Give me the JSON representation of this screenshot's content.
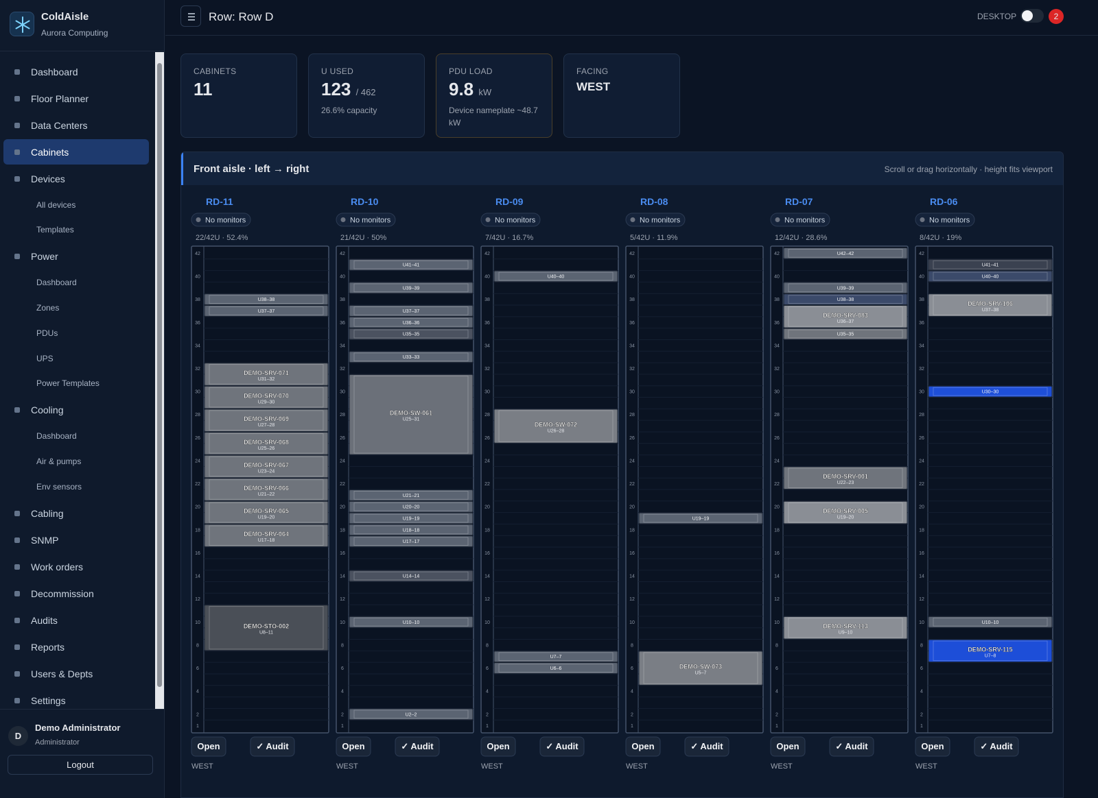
{
  "sidebar": {
    "brand": "ColdAisle",
    "org": "Aurora Computing",
    "nav": [
      {
        "label": "Dashboard"
      },
      {
        "label": "Floor Planner"
      },
      {
        "label": "Data Centers"
      },
      {
        "label": "Cabinets",
        "active": true
      },
      {
        "label": "Devices",
        "children": [
          "All devices",
          "Templates"
        ]
      },
      {
        "label": "Power",
        "children": [
          "Dashboard",
          "Zones",
          "PDUs",
          "UPS",
          "Power Templates"
        ]
      },
      {
        "label": "Cooling",
        "children": [
          "Dashboard",
          "Air & pumps",
          "Env sensors"
        ]
      },
      {
        "label": "Cabling"
      },
      {
        "label": "SNMP"
      },
      {
        "label": "Work orders"
      },
      {
        "label": "Decommission"
      },
      {
        "label": "Audits"
      },
      {
        "label": "Reports"
      },
      {
        "label": "Users & Depts"
      },
      {
        "label": "Settings"
      }
    ],
    "user": {
      "initial": "D",
      "name": "Demo Administrator",
      "role": "Administrator"
    },
    "logout": "Logout"
  },
  "header": {
    "title": "Row: Row D",
    "mode": "DESKTOP",
    "notifications": 2
  },
  "stats": [
    {
      "label": "CABINETS",
      "value": 11
    },
    {
      "label": "U USED",
      "value": 123,
      "total": "/ 462",
      "note": "26.6% capacity"
    },
    {
      "label": "PDU LOAD",
      "value": 9.8,
      "unit": "kW",
      "note": "Device nameplate ~48.7 kW"
    },
    {
      "label": "FACING",
      "value": "WEST"
    }
  ],
  "panel": {
    "title": "Front aisle · left → right",
    "hint": "Scroll or drag horizontally · height fits viewport"
  },
  "rack_units": [
    42,
    40,
    38,
    36,
    34,
    32,
    30,
    28,
    26,
    24,
    22,
    20,
    18,
    16,
    14,
    12,
    10,
    8,
    6,
    4,
    2,
    1
  ],
  "cabinets": [
    {
      "name": "RD-11",
      "monitors": "No monitors",
      "usage": "22/42U · 52.4%",
      "actions": [
        "Open",
        "✓ Audit"
      ],
      "facing": "WEST",
      "devices": [
        {
          "range": "U38–38",
          "color": "#5b6472"
        },
        {
          "range": "U37–37",
          "color": "#5b6472"
        },
        {
          "name": "DEMO-SRV-071",
          "range": "U31–32",
          "color": "#6f747c"
        },
        {
          "name": "DEMO-SRV-070",
          "range": "U29–30",
          "color": "#6f747c"
        },
        {
          "name": "DEMO-SRV-069",
          "range": "U27–28",
          "color": "#6f747c"
        },
        {
          "name": "DEMO-SRV-068",
          "range": "U25–26",
          "color": "#6f747c"
        },
        {
          "name": "DEMO-SRV-067",
          "range": "U23–24",
          "color": "#6f747c"
        },
        {
          "name": "DEMO-SRV-066",
          "range": "U21–22",
          "color": "#6f747c"
        },
        {
          "name": "DEMO-SRV-065",
          "range": "U19–20",
          "color": "#6f747c"
        },
        {
          "name": "DEMO-SRV-064",
          "range": "U17–18",
          "color": "#6f747c"
        },
        {
          "name": "DEMO-STO-002",
          "range": "U8–11",
          "color": "#4a4f57"
        }
      ]
    },
    {
      "name": "RD-10",
      "monitors": "No monitors",
      "usage": "21/42U · 50%",
      "actions": [
        "Open",
        "✓ Audit"
      ],
      "facing": "WEST",
      "devices": [
        {
          "range": "U41–41",
          "color": "#5b6472"
        },
        {
          "range": "U39–39",
          "color": "#5b6472"
        },
        {
          "range": "U37–37",
          "color": "#5b6472"
        },
        {
          "range": "U36–36",
          "color": "#5b6472"
        },
        {
          "range": "U35–35",
          "color": "#4b5260"
        },
        {
          "range": "U33–33",
          "color": "#5b6472"
        },
        {
          "name": "DEMO-SW-061",
          "range": "U25–31",
          "color": "#6b7079"
        },
        {
          "range": "U21–21",
          "color": "#5b6472"
        },
        {
          "range": "U20–20",
          "color": "#5b6472"
        },
        {
          "range": "U19–19",
          "color": "#5b6472"
        },
        {
          "range": "U18–18",
          "color": "#5b6472"
        },
        {
          "range": "U17–17",
          "color": "#5b6472"
        },
        {
          "range": "U14–14",
          "color": "#4b5260"
        },
        {
          "range": "U10–10",
          "color": "#5b6472"
        },
        {
          "range": "U2–2",
          "color": "#5b6472"
        }
      ]
    },
    {
      "name": "RD-09",
      "monitors": "No monitors",
      "usage": "7/42U · 16.7%",
      "actions": [
        "Open",
        "✓ Audit"
      ],
      "facing": "WEST",
      "devices": [
        {
          "range": "U40–40",
          "color": "#5b6472"
        },
        {
          "name": "DEMO-SW-072",
          "range": "U26–28",
          "color": "#7a7e85"
        },
        {
          "range": "U7–7",
          "color": "#5b6472"
        },
        {
          "range": "U6–6",
          "color": "#5b6472"
        }
      ]
    },
    {
      "name": "RD-08",
      "monitors": "No monitors",
      "usage": "5/42U · 11.9%",
      "actions": [
        "Open",
        "✓ Audit"
      ],
      "facing": "WEST",
      "devices": [
        {
          "range": "U19–19",
          "color": "#5b6472"
        },
        {
          "name": "DEMO-SW-073",
          "range": "U5–7",
          "color": "#7a7e85"
        }
      ]
    },
    {
      "name": "RD-07",
      "monitors": "No monitors",
      "usage": "12/42U · 28.6%",
      "actions": [
        "Open",
        "✓ Audit"
      ],
      "facing": "WEST",
      "devices": [
        {
          "range": "U42–42",
          "color": "#5b6472"
        },
        {
          "range": "U39–39",
          "color": "#5b6472"
        },
        {
          "range": "U38–38",
          "color": "#3b4a6a"
        },
        {
          "name": "DEMO-SRV-083",
          "range": "U36–37",
          "color": "#8a8e95"
        },
        {
          "range": "U35–35",
          "color": "#6f747c"
        },
        {
          "name": "DEMO-SRV-001",
          "range": "U22–23",
          "color": "#6f747c"
        },
        {
          "name": "DEMO-SRV-005",
          "range": "U19–20",
          "color": "#8a8e95"
        },
        {
          "name": "DEMO-SRV-113",
          "range": "U9–10",
          "color": "#8a8e95"
        }
      ]
    },
    {
      "name": "RD-06",
      "monitors": "No monitors",
      "usage": "8/42U · 19%",
      "actions": [
        "Open",
        "✓ Audit"
      ],
      "facing": "WEST",
      "devices": [
        {
          "range": "U41–41",
          "color": "#3a4150"
        },
        {
          "range": "U40–40",
          "color": "#3b4a6a"
        },
        {
          "name": "DEMO-SRV-106",
          "range": "U37–38",
          "color": "#8a8e95"
        },
        {
          "range": "U30–30",
          "color": "#1e4fd8"
        },
        {
          "range": "U10–10",
          "color": "#5b6472"
        },
        {
          "name": "DEMO-SRV-115",
          "range": "U7–8",
          "color": "#1d4ed8"
        }
      ]
    }
  ]
}
